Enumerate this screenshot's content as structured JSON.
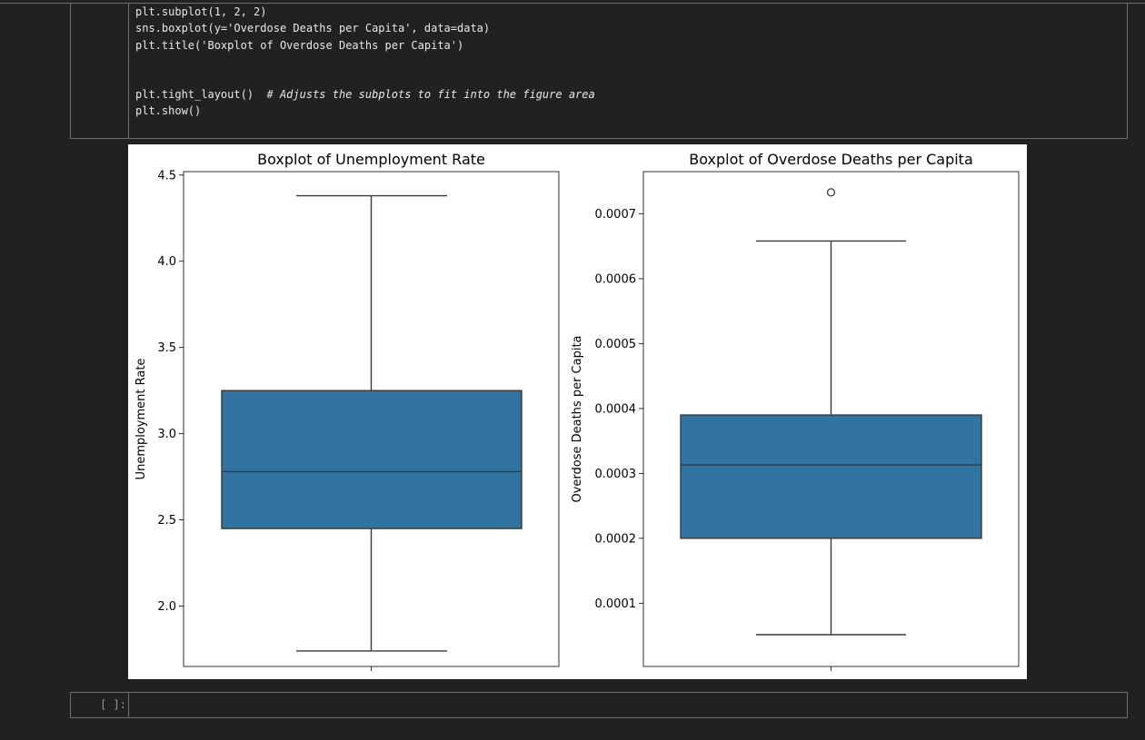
{
  "notebook": {
    "code_lines": [
      "plt.subplot(1, 2, 2)",
      "sns.boxplot(y='Overdose Deaths per Capita', data=data)",
      "plt.title('Boxplot of Overdose Deaths per Capita')",
      "",
      "",
      "plt.tight_layout()  ",
      "plt.show()"
    ],
    "inline_comment": "# Adjusts the subplots to fit into the figure area",
    "empty_cell_prompt": "[ ]:"
  },
  "colors": {
    "box_fill": "#3274a1",
    "line": "#3a3a3a",
    "background": "#212121"
  },
  "chart_data": [
    {
      "type": "box",
      "title": "Boxplot of Unemployment Rate",
      "ylabel": "Unemployment Rate",
      "xlabel": "",
      "ylim": [
        1.65,
        4.52
      ],
      "yticks": [
        2.0,
        2.5,
        3.0,
        3.5,
        4.0,
        4.5
      ],
      "ytick_labels": [
        "2.0",
        "2.5",
        "3.0",
        "3.5",
        "4.0",
        "4.5"
      ],
      "whisker_low": 1.74,
      "q1": 2.45,
      "median": 2.78,
      "q3": 3.25,
      "whisker_high": 4.38,
      "outliers": []
    },
    {
      "type": "box",
      "title": "Boxplot of Overdose Deaths per Capita",
      "ylabel": "Overdose Deaths per Capita",
      "xlabel": "",
      "ylim": [
        2.55e-06,
        0.000765
      ],
      "yticks": [
        0.0001,
        0.0002,
        0.0003,
        0.0004,
        0.0005,
        0.0006,
        0.0007
      ],
      "ytick_labels": [
        "0.0001",
        "0.0002",
        "0.0003",
        "0.0004",
        "0.0005",
        "0.0006",
        "0.0007"
      ],
      "whisker_low": 5.15e-05,
      "q1": 0.0002,
      "median": 0.000313,
      "q3": 0.00039,
      "whisker_high": 0.000658,
      "outliers": [
        0.000733
      ]
    }
  ]
}
